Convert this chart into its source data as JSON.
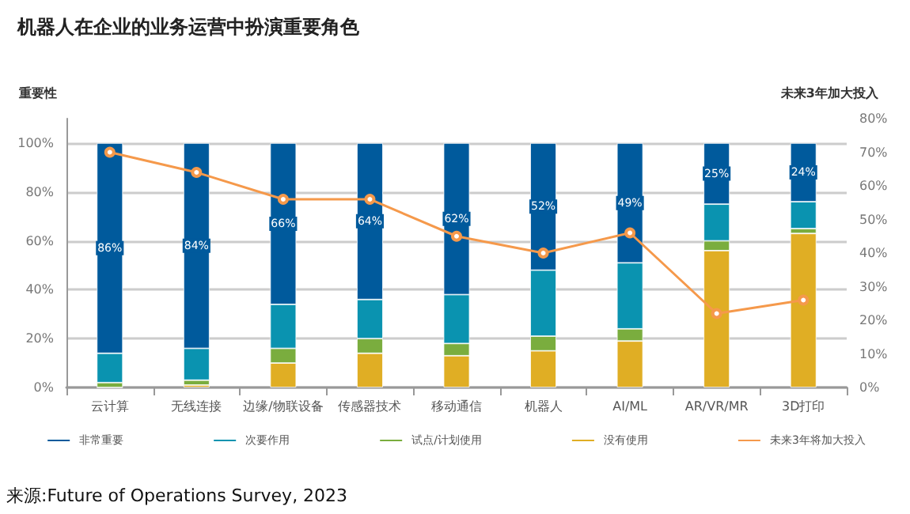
{
  "chart_data": {
    "type": "bar",
    "title": "机器人在企业的业务运营中扮演重要角色",
    "ylabel": "重要性",
    "y2label": "未来3年加大投入",
    "categories": [
      "云计算",
      "无线连接",
      "边缘/物联设备",
      "传感器技术",
      "移动通信",
      "机器人",
      "AI/ML",
      "AR/VR/MR",
      "3D打印"
    ],
    "stacked": true,
    "series": [
      {
        "name": "没有使用",
        "color": "#e0ae24",
        "values": [
          0,
          1,
          10,
          14,
          13,
          15,
          19,
          56,
          63
        ]
      },
      {
        "name": "试点/计划使用",
        "color": "#7aad3e",
        "values": [
          2,
          2,
          6,
          6,
          5,
          6,
          5,
          4,
          2
        ]
      },
      {
        "name": "次要作用",
        "color": "#0a93b0",
        "values": [
          12,
          13,
          18,
          16,
          20,
          27,
          27,
          15,
          11
        ]
      },
      {
        "name": "非常重要",
        "color": "#005a9c",
        "values": [
          86,
          84,
          66,
          64,
          62,
          52,
          49,
          25,
          24
        ],
        "value_labels": [
          "86%",
          "84%",
          "66%",
          "64%",
          "62%",
          "52%",
          "49%",
          "25%",
          "24%"
        ]
      },
      {
        "name": "未来3年将加大投入",
        "type": "line",
        "axis": "y2",
        "color": "#f5994b",
        "marker": "circle",
        "values": [
          70,
          64,
          56,
          56,
          45,
          40,
          46,
          22,
          26
        ]
      }
    ],
    "ylim": [
      0,
      110
    ],
    "yticks": [
      {
        "value": 0,
        "label": "0%"
      },
      {
        "value": 20,
        "label": "20%"
      },
      {
        "value": 40,
        "label": "40%"
      },
      {
        "value": 60,
        "label": "60%"
      },
      {
        "value": 80,
        "label": "80%"
      },
      {
        "value": 100,
        "label": "100%"
      }
    ],
    "y2lim": [
      0,
      80
    ],
    "y2ticks": [
      {
        "value": 0,
        "label": "0%"
      },
      {
        "value": 10,
        "label": "10%"
      },
      {
        "value": 20,
        "label": "20%"
      },
      {
        "value": 30,
        "label": "30%"
      },
      {
        "value": 40,
        "label": "40%"
      },
      {
        "value": 50,
        "label": "50%"
      },
      {
        "value": 60,
        "label": "60%"
      },
      {
        "value": 70,
        "label": "70%"
      },
      {
        "value": 80,
        "label": "80%"
      }
    ],
    "grid": "y",
    "legend": "bottom",
    "annotations": [
      "来源:Future of Operations Survey, 2023"
    ]
  }
}
